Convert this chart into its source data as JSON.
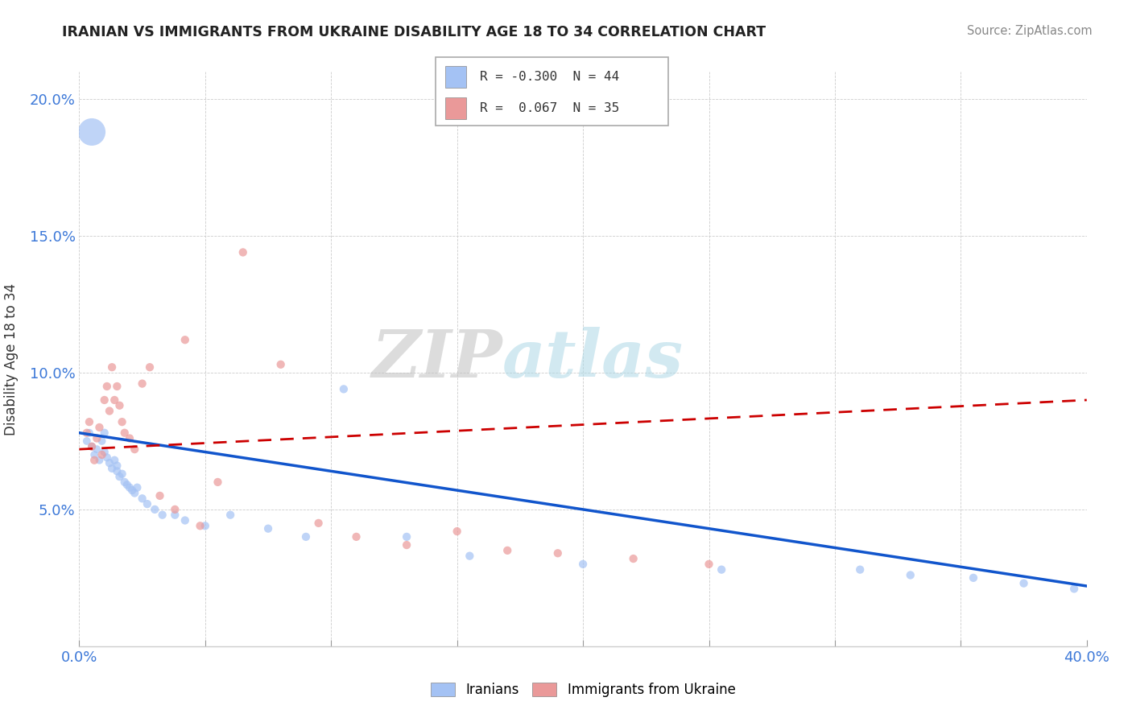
{
  "title": "IRANIAN VS IMMIGRANTS FROM UKRAINE DISABILITY AGE 18 TO 34 CORRELATION CHART",
  "source": "Source: ZipAtlas.com",
  "ylabel_label": "Disability Age 18 to 34",
  "xlim": [
    0.0,
    0.4
  ],
  "ylim": [
    0.0,
    0.21
  ],
  "xticks": [
    0.0,
    0.05,
    0.1,
    0.15,
    0.2,
    0.25,
    0.3,
    0.35,
    0.4
  ],
  "xticklabels": [
    "0.0%",
    "",
    "",
    "",
    "",
    "",
    "",
    "",
    "40.0%"
  ],
  "yticks": [
    0.0,
    0.05,
    0.1,
    0.15,
    0.2
  ],
  "yticklabels": [
    "",
    "5.0%",
    "10.0%",
    "15.0%",
    "20.0%"
  ],
  "watermark_zip": "ZIP",
  "watermark_atlas": "atlas",
  "legend_text1": "R = -0.300  N = 44",
  "legend_text2": "R =  0.067  N = 35",
  "color_iranian": "#a4c2f4",
  "color_ukraine": "#ea9999",
  "line_color_iranian": "#1155cc",
  "line_color_ukraine": "#cc0000",
  "iranians_x": [
    0.003,
    0.004,
    0.005,
    0.005,
    0.006,
    0.007,
    0.008,
    0.009,
    0.01,
    0.01,
    0.011,
    0.012,
    0.013,
    0.014,
    0.015,
    0.015,
    0.016,
    0.017,
    0.018,
    0.019,
    0.02,
    0.021,
    0.022,
    0.023,
    0.025,
    0.027,
    0.03,
    0.033,
    0.038,
    0.042,
    0.05,
    0.06,
    0.075,
    0.09,
    0.105,
    0.13,
    0.155,
    0.2,
    0.255,
    0.31,
    0.33,
    0.355,
    0.375,
    0.395
  ],
  "iranians_y": [
    0.075,
    0.078,
    0.188,
    0.073,
    0.07,
    0.072,
    0.068,
    0.075,
    0.078,
    0.071,
    0.069,
    0.067,
    0.065,
    0.068,
    0.066,
    0.064,
    0.062,
    0.063,
    0.06,
    0.059,
    0.058,
    0.057,
    0.056,
    0.058,
    0.054,
    0.052,
    0.05,
    0.048,
    0.048,
    0.046,
    0.044,
    0.048,
    0.043,
    0.04,
    0.094,
    0.04,
    0.033,
    0.03,
    0.028,
    0.028,
    0.026,
    0.025,
    0.023,
    0.021
  ],
  "iranians_size": [
    50,
    50,
    600,
    50,
    50,
    50,
    50,
    50,
    55,
    55,
    55,
    55,
    55,
    55,
    55,
    55,
    55,
    55,
    55,
    55,
    55,
    55,
    55,
    55,
    55,
    55,
    55,
    55,
    55,
    55,
    55,
    55,
    55,
    55,
    55,
    55,
    55,
    55,
    55,
    55,
    55,
    55,
    55,
    55
  ],
  "ukraine_x": [
    0.003,
    0.004,
    0.005,
    0.006,
    0.007,
    0.008,
    0.009,
    0.01,
    0.011,
    0.012,
    0.013,
    0.014,
    0.015,
    0.016,
    0.017,
    0.018,
    0.02,
    0.022,
    0.025,
    0.028,
    0.032,
    0.038,
    0.042,
    0.048,
    0.055,
    0.065,
    0.08,
    0.095,
    0.11,
    0.13,
    0.15,
    0.17,
    0.19,
    0.22,
    0.25
  ],
  "ukraine_y": [
    0.078,
    0.082,
    0.073,
    0.068,
    0.076,
    0.08,
    0.07,
    0.09,
    0.095,
    0.086,
    0.102,
    0.09,
    0.095,
    0.088,
    0.082,
    0.078,
    0.076,
    0.072,
    0.096,
    0.102,
    0.055,
    0.05,
    0.112,
    0.044,
    0.06,
    0.144,
    0.103,
    0.045,
    0.04,
    0.037,
    0.042,
    0.035,
    0.034,
    0.032,
    0.03
  ],
  "ukraine_size": [
    55,
    55,
    55,
    55,
    55,
    55,
    55,
    55,
    55,
    55,
    55,
    55,
    55,
    55,
    55,
    55,
    55,
    55,
    55,
    55,
    55,
    55,
    55,
    55,
    55,
    55,
    55,
    55,
    55,
    55,
    55,
    55,
    55,
    55,
    55
  ],
  "background_color": "#ffffff",
  "grid_color": "#cccccc",
  "iran_trendline_x": [
    0.0,
    0.4
  ],
  "iran_trendline_y": [
    0.078,
    0.022
  ],
  "ukr_trendline_x": [
    0.0,
    0.4
  ],
  "ukr_trendline_y": [
    0.072,
    0.09
  ]
}
